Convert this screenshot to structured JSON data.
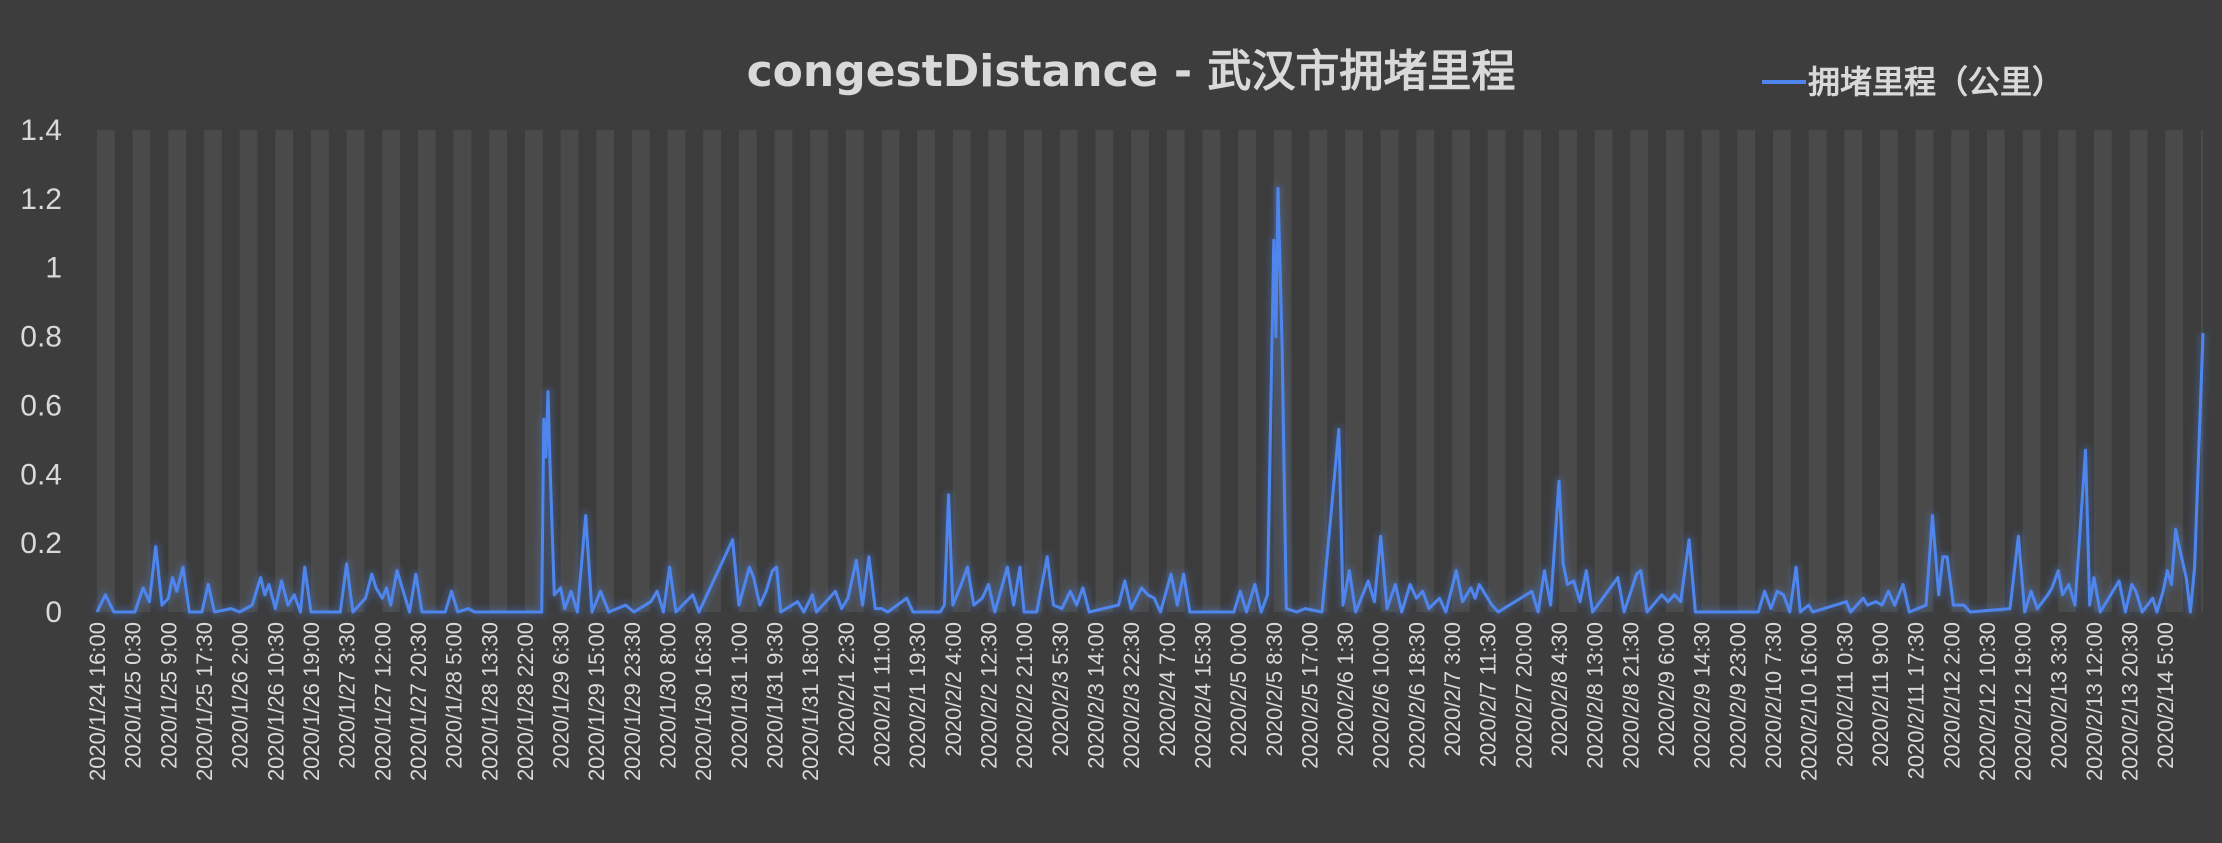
{
  "chart_data": {
    "type": "line",
    "title": "congestDistance - 武汉市拥堵里程",
    "xlabel": "",
    "ylabel": "",
    "ylim": [
      0,
      1.4
    ],
    "y_ticks": [
      "0",
      "0.2",
      "0.4",
      "0.6",
      "0.8",
      "1",
      "1.2",
      "1.4"
    ],
    "grid": "vertical-bands",
    "legend_position": "top-right",
    "colors": {
      "series": "#4f86ee",
      "plot_bg": "#4a4a4a",
      "band": "#3c3c3c"
    },
    "x_tick_labels": [
      "2020/1/24 16:00",
      "2020/1/25 0:30",
      "2020/1/25 9:00",
      "2020/1/25 17:30",
      "2020/1/26 2:00",
      "2020/1/26 10:30",
      "2020/1/26 19:00",
      "2020/1/27 3:30",
      "2020/1/27 12:00",
      "2020/1/27 20:30",
      "2020/1/28 5:00",
      "2020/1/28 13:30",
      "2020/1/28 22:00",
      "2020/1/29 6:30",
      "2020/1/29 15:00",
      "2020/1/29 23:30",
      "2020/1/30 8:00",
      "2020/1/30 16:30",
      "2020/1/31 1:00",
      "2020/1/31 9:30",
      "2020/1/31 18:00",
      "2020/2/1 2:30",
      "2020/2/1 11:00",
      "2020/2/1 19:30",
      "2020/2/2 4:00",
      "2020/2/2 12:30",
      "2020/2/2 21:00",
      "2020/2/3 5:30",
      "2020/2/3 14:00",
      "2020/2/3 22:30",
      "2020/2/4 7:00",
      "2020/2/4 15:30",
      "2020/2/5 0:00",
      "2020/2/5 8:30",
      "2020/2/5 17:00",
      "2020/2/6 1:30",
      "2020/2/6 10:00",
      "2020/2/6 18:30",
      "2020/2/7 3:00",
      "2020/2/7 11:30",
      "2020/2/7 20:00",
      "2020/2/8 4:30",
      "2020/2/8 13:00",
      "2020/2/8 21:30",
      "2020/2/9 6:00",
      "2020/2/9 14:30",
      "2020/2/9 23:00",
      "2020/2/10 7:30",
      "2020/2/10 16:00",
      "2020/2/11 0:30",
      "2020/2/11 9:00",
      "2020/2/11 17:30",
      "2020/2/12 2:00",
      "2020/2/12 10:30",
      "2020/2/12 19:00",
      "2020/2/13 3:30",
      "2020/2/13 12:00",
      "2020/2/13 20:30",
      "2020/2/14 5:00"
    ],
    "x_range": [
      "2020/1/24 16:00",
      "2020/2/14 14:00"
    ],
    "series": [
      {
        "name": "拥堵里程（公里）",
        "points": [
          [
            "2020/1/24 16:00",
            0
          ],
          [
            "2020/1/24 18:00",
            0.05
          ],
          [
            "2020/1/24 20:00",
            0
          ],
          [
            "2020/1/25 1:00",
            0
          ],
          [
            "2020/1/25 3:00",
            0.07
          ],
          [
            "2020/1/25 4:30",
            0.03
          ],
          [
            "2020/1/25 6:00",
            0.19
          ],
          [
            "2020/1/25 7:30",
            0.02
          ],
          [
            "2020/1/25 9:00",
            0.04
          ],
          [
            "2020/1/25 10:00",
            0.1
          ],
          [
            "2020/1/25 11:00",
            0.06
          ],
          [
            "2020/1/25 12:30",
            0.13
          ],
          [
            "2020/1/25 14:00",
            0
          ],
          [
            "2020/1/25 17:00",
            0
          ],
          [
            "2020/1/25 18:30",
            0.08
          ],
          [
            "2020/1/25 20:00",
            0
          ],
          [
            "2020/1/26 0:00",
            0.01
          ],
          [
            "2020/1/26 2:00",
            0
          ],
          [
            "2020/1/26 5:00",
            0.02
          ],
          [
            "2020/1/26 7:00",
            0.1
          ],
          [
            "2020/1/26 8:00",
            0.05
          ],
          [
            "2020/1/26 9:00",
            0.08
          ],
          [
            "2020/1/26 10:30",
            0.01
          ],
          [
            "2020/1/26 12:00",
            0.09
          ],
          [
            "2020/1/26 13:30",
            0.02
          ],
          [
            "2020/1/26 15:00",
            0.05
          ],
          [
            "2020/1/26 16:30",
            0
          ],
          [
            "2020/1/26 17:30",
            0.13
          ],
          [
            "2020/1/26 19:00",
            0
          ],
          [
            "2020/1/27 2:00",
            0
          ],
          [
            "2020/1/27 3:30",
            0.14
          ],
          [
            "2020/1/27 5:00",
            0
          ],
          [
            "2020/1/27 6:30",
            0.02
          ],
          [
            "2020/1/27 8:00",
            0.04
          ],
          [
            "2020/1/27 9:30",
            0.11
          ],
          [
            "2020/1/27 10:30",
            0.07
          ],
          [
            "2020/1/27 12:00",
            0.04
          ],
          [
            "2020/1/27 13:00",
            0.07
          ],
          [
            "2020/1/27 14:00",
            0.02
          ],
          [
            "2020/1/27 15:30",
            0.12
          ],
          [
            "2020/1/27 17:00",
            0.06
          ],
          [
            "2020/1/27 18:30",
            0
          ],
          [
            "2020/1/27 20:00",
            0.11
          ],
          [
            "2020/1/27 21:30",
            0
          ],
          [
            "2020/1/28 3:00",
            0
          ],
          [
            "2020/1/28 4:30",
            0.06
          ],
          [
            "2020/1/28 6:00",
            0
          ],
          [
            "2020/1/28 8:30",
            0.01
          ],
          [
            "2020/1/28 10:00",
            0
          ],
          [
            "2020/1/29 2:00",
            0
          ],
          [
            "2020/1/29 2:30",
            0.56
          ],
          [
            "2020/1/29 3:00",
            0.45
          ],
          [
            "2020/1/29 3:30",
            0.64
          ],
          [
            "2020/1/29 4:00",
            0.42
          ],
          [
            "2020/1/29 5:00",
            0.05
          ],
          [
            "2020/1/29 6:30",
            0.07
          ],
          [
            "2020/1/29 7:30",
            0.01
          ],
          [
            "2020/1/29 9:00",
            0.06
          ],
          [
            "2020/1/29 10:30",
            0
          ],
          [
            "2020/1/29 12:30",
            0.28
          ],
          [
            "2020/1/29 14:00",
            0
          ],
          [
            "2020/1/29 16:00",
            0.06
          ],
          [
            "2020/1/29 18:00",
            0
          ],
          [
            "2020/1/29 22:00",
            0.02
          ],
          [
            "2020/1/30 0:00",
            0
          ],
          [
            "2020/1/30 4:00",
            0.03
          ],
          [
            "2020/1/30 5:30",
            0.06
          ],
          [
            "2020/1/30 7:00",
            0
          ],
          [
            "2020/1/30 8:30",
            0.13
          ],
          [
            "2020/1/30 10:00",
            0
          ],
          [
            "2020/1/30 14:00",
            0.05
          ],
          [
            "2020/1/30 15:30",
            0
          ],
          [
            "2020/1/30 23:30",
            0.21
          ],
          [
            "2020/1/31 1:00",
            0.02
          ],
          [
            "2020/1/31 3:30",
            0.13
          ],
          [
            "2020/1/31 4:30",
            0.1
          ],
          [
            "2020/1/31 6:00",
            0.02
          ],
          [
            "2020/1/31 7:30",
            0.06
          ],
          [
            "2020/1/31 9:00",
            0.12
          ],
          [
            "2020/1/31 10:00",
            0.13
          ],
          [
            "2020/1/31 11:00",
            0
          ],
          [
            "2020/1/31 15:00",
            0.03
          ],
          [
            "2020/1/31 16:30",
            0
          ],
          [
            "2020/1/31 18:30",
            0.05
          ],
          [
            "2020/1/31 19:30",
            0
          ],
          [
            "2020/2/1 0:00",
            0.06
          ],
          [
            "2020/2/1 1:30",
            0.01
          ],
          [
            "2020/2/1 3:00",
            0.04
          ],
          [
            "2020/2/1 5:00",
            0.15
          ],
          [
            "2020/2/1 6:30",
            0.02
          ],
          [
            "2020/2/1 8:00",
            0.16
          ],
          [
            "2020/2/1 9:30",
            0.01
          ],
          [
            "2020/2/1 11:00",
            0.01
          ],
          [
            "2020/2/1 12:30",
            0
          ],
          [
            "2020/2/1 17:00",
            0.04
          ],
          [
            "2020/2/1 18:30",
            0
          ],
          [
            "2020/2/2 1:00",
            0
          ],
          [
            "2020/2/2 2:00",
            0.02
          ],
          [
            "2020/2/2 3:00",
            0.34
          ],
          [
            "2020/2/2 4:00",
            0.02
          ],
          [
            "2020/2/2 6:00",
            0.08
          ],
          [
            "2020/2/2 7:30",
            0.13
          ],
          [
            "2020/2/2 9:00",
            0.02
          ],
          [
            "2020/2/2 11:00",
            0.04
          ],
          [
            "2020/2/2 12:30",
            0.08
          ],
          [
            "2020/2/2 14:00",
            0
          ],
          [
            "2020/2/2 17:00",
            0.13
          ],
          [
            "2020/2/2 18:30",
            0.02
          ],
          [
            "2020/2/2 20:00",
            0.13
          ],
          [
            "2020/2/2 21:00",
            0
          ],
          [
            "2020/2/3 0:00",
            0
          ],
          [
            "2020/2/3 2:30",
            0.16
          ],
          [
            "2020/2/3 4:00",
            0.02
          ],
          [
            "2020/2/3 6:00",
            0.01
          ],
          [
            "2020/2/3 8:00",
            0.06
          ],
          [
            "2020/2/3 9:30",
            0.02
          ],
          [
            "2020/2/3 11:00",
            0.07
          ],
          [
            "2020/2/3 12:30",
            0
          ],
          [
            "2020/2/3 19:30",
            0.02
          ],
          [
            "2020/2/3 21:00",
            0.09
          ],
          [
            "2020/2/3 22:30",
            0.01
          ],
          [
            "2020/2/4 1:00",
            0.07
          ],
          [
            "2020/2/4 2:30",
            0.05
          ],
          [
            "2020/2/4 4:00",
            0.04
          ],
          [
            "2020/2/4 5:30",
            0
          ],
          [
            "2020/2/4 8:00",
            0.11
          ],
          [
            "2020/2/4 9:30",
            0.02
          ],
          [
            "2020/2/4 11:00",
            0.11
          ],
          [
            "2020/2/4 12:30",
            0
          ],
          [
            "2020/2/4 23:00",
            0
          ],
          [
            "2020/2/5 0:30",
            0.06
          ],
          [
            "2020/2/5 2:00",
            0
          ],
          [
            "2020/2/5 4:00",
            0.08
          ],
          [
            "2020/2/5 5:30",
            0
          ],
          [
            "2020/2/5 7:00",
            0.05
          ],
          [
            "2020/2/5 8:30",
            1.08
          ],
          [
            "2020/2/5 9:00",
            0.8
          ],
          [
            "2020/2/5 9:30",
            1.23
          ],
          [
            "2020/2/5 10:30",
            0.77
          ],
          [
            "2020/2/5 11:30",
            0.01
          ],
          [
            "2020/2/5 14:00",
            0
          ],
          [
            "2020/2/5 16:00",
            0.01
          ],
          [
            "2020/2/5 20:00",
            0
          ],
          [
            "2020/2/6 0:00",
            0.53
          ],
          [
            "2020/2/6 1:00",
            0.02
          ],
          [
            "2020/2/6 2:30",
            0.12
          ],
          [
            "2020/2/6 4:00",
            0
          ],
          [
            "2020/2/6 7:00",
            0.09
          ],
          [
            "2020/2/6 8:30",
            0.03
          ],
          [
            "2020/2/6 10:00",
            0.22
          ],
          [
            "2020/2/6 11:30",
            0.01
          ],
          [
            "2020/2/6 13:30",
            0.08
          ],
          [
            "2020/2/6 15:00",
            0
          ],
          [
            "2020/2/6 17:00",
            0.08
          ],
          [
            "2020/2/6 18:30",
            0.04
          ],
          [
            "2020/2/6 20:00",
            0.06
          ],
          [
            "2020/2/6 21:30",
            0.01
          ],
          [
            "2020/2/7 0:00",
            0.04
          ],
          [
            "2020/2/7 1:30",
            0
          ],
          [
            "2020/2/7 4:00",
            0.12
          ],
          [
            "2020/2/7 5:30",
            0.03
          ],
          [
            "2020/2/7 7:30",
            0.07
          ],
          [
            "2020/2/7 8:30",
            0.04
          ],
          [
            "2020/2/7 9:30",
            0.08
          ],
          [
            "2020/2/7 11:00",
            0.05
          ],
          [
            "2020/2/7 12:30",
            0.02
          ],
          [
            "2020/2/7 14:00",
            0
          ],
          [
            "2020/2/7 22:00",
            0.06
          ],
          [
            "2020/2/7 23:30",
            0
          ],
          [
            "2020/2/8 1:00",
            0.12
          ],
          [
            "2020/2/8 2:30",
            0.02
          ],
          [
            "2020/2/8 4:30",
            0.38
          ],
          [
            "2020/2/8 5:30",
            0.14
          ],
          [
            "2020/2/8 6:30",
            0.08
          ],
          [
            "2020/2/8 8:00",
            0.09
          ],
          [
            "2020/2/8 9:30",
            0.03
          ],
          [
            "2020/2/8 11:00",
            0.12
          ],
          [
            "2020/2/8 12:30",
            0
          ],
          [
            "2020/2/8 18:30",
            0.1
          ],
          [
            "2020/2/8 20:00",
            0
          ],
          [
            "2020/2/8 23:00",
            0.11
          ],
          [
            "2020/2/9 0:00",
            0.12
          ],
          [
            "2020/2/9 1:30",
            0
          ],
          [
            "2020/2/9 5:00",
            0.05
          ],
          [
            "2020/2/9 6:30",
            0.03
          ],
          [
            "2020/2/9 8:00",
            0.05
          ],
          [
            "2020/2/9 9:30",
            0.03
          ],
          [
            "2020/2/9 11:30",
            0.21
          ],
          [
            "2020/2/9 13:00",
            0
          ],
          [
            "2020/2/10 4:00",
            0
          ],
          [
            "2020/2/10 5:30",
            0.06
          ],
          [
            "2020/2/10 7:00",
            0.01
          ],
          [
            "2020/2/10 8:30",
            0.06
          ],
          [
            "2020/2/10 10:00",
            0.05
          ],
          [
            "2020/2/10 11:30",
            0
          ],
          [
            "2020/2/10 13:00",
            0.13
          ],
          [
            "2020/2/10 14:00",
            0
          ],
          [
            "2020/2/10 16:00",
            0.02
          ],
          [
            "2020/2/10 17:00",
            0
          ],
          [
            "2020/2/11 1:00",
            0.03
          ],
          [
            "2020/2/11 2:00",
            0
          ],
          [
            "2020/2/11 5:00",
            0.04
          ],
          [
            "2020/2/11 6:00",
            0.02
          ],
          [
            "2020/2/11 8:00",
            0.03
          ],
          [
            "2020/2/11 9:30",
            0.02
          ],
          [
            "2020/2/11 11:00",
            0.06
          ],
          [
            "2020/2/11 12:30",
            0.02
          ],
          [
            "2020/2/11 14:30",
            0.08
          ],
          [
            "2020/2/11 16:00",
            0
          ],
          [
            "2020/2/11 20:00",
            0.02
          ],
          [
            "2020/2/11 21:30",
            0.28
          ],
          [
            "2020/2/11 23:00",
            0.05
          ],
          [
            "2020/2/12 0:00",
            0.16
          ],
          [
            "2020/2/12 1:00",
            0.16
          ],
          [
            "2020/2/12 2:30",
            0.02
          ],
          [
            "2020/2/12 5:00",
            0.02
          ],
          [
            "2020/2/12 6:30",
            0
          ],
          [
            "2020/2/12 16:00",
            0.01
          ],
          [
            "2020/2/12 18:00",
            0.22
          ],
          [
            "2020/2/12 19:30",
            0
          ],
          [
            "2020/2/12 21:00",
            0.06
          ],
          [
            "2020/2/12 22:30",
            0.01
          ],
          [
            "2020/2/13 1:00",
            0.05
          ],
          [
            "2020/2/13 2:00",
            0.07
          ],
          [
            "2020/2/13 3:30",
            0.12
          ],
          [
            "2020/2/13 4:30",
            0.05
          ],
          [
            "2020/2/13 6:00",
            0.08
          ],
          [
            "2020/2/13 7:30",
            0.02
          ],
          [
            "2020/2/13 10:00",
            0.47
          ],
          [
            "2020/2/13 11:00",
            0.02
          ],
          [
            "2020/2/13 12:00",
            0.1
          ],
          [
            "2020/2/13 13:30",
            0
          ],
          [
            "2020/2/13 18:00",
            0.09
          ],
          [
            "2020/2/13 19:30",
            0
          ],
          [
            "2020/2/13 21:00",
            0.08
          ],
          [
            "2020/2/13 22:00",
            0.06
          ],
          [
            "2020/2/13 23:30",
            0
          ],
          [
            "2020/2/14 2:00",
            0.04
          ],
          [
            "2020/2/14 3:00",
            0
          ],
          [
            "2020/2/14 4:30",
            0.06
          ],
          [
            "2020/2/14 5:30",
            0.12
          ],
          [
            "2020/2/14 6:30",
            0.08
          ],
          [
            "2020/2/14 7:30",
            0.24
          ],
          [
            "2020/2/14 8:30",
            0.18
          ],
          [
            "2020/2/14 10:00",
            0.1
          ],
          [
            "2020/2/14 11:00",
            0
          ],
          [
            "2020/2/14 12:00",
            0.13
          ],
          [
            "2020/2/14 14:00",
            0.81
          ]
        ]
      }
    ]
  }
}
